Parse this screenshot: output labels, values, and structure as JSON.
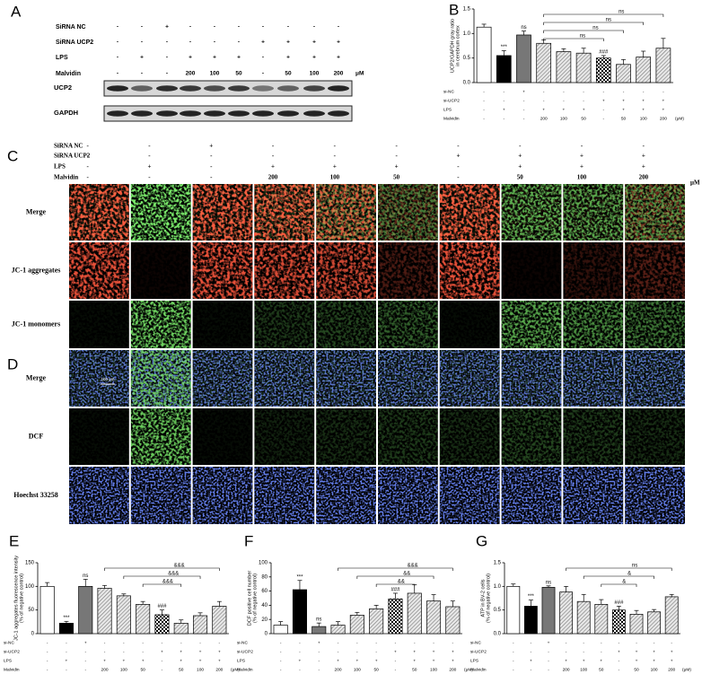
{
  "panels": {
    "A": {
      "letter": "A",
      "conditions": {
        "rows": [
          {
            "label": "SiRNA NC",
            "cells": [
              "-",
              "-",
              "+",
              "-",
              "-",
              "-",
              "-",
              "-",
              "-",
              "-"
            ]
          },
          {
            "label": "SiRNA UCP2",
            "cells": [
              "-",
              "-",
              "-",
              "-",
              "-",
              "-",
              "+",
              "+",
              "+",
              "+"
            ]
          },
          {
            "label": "LPS",
            "cells": [
              "-",
              "+",
              "-",
              "+",
              "+",
              "+",
              "-",
              "+",
              "+",
              "+"
            ]
          },
          {
            "label": "Malvidin",
            "cells": [
              "-",
              "-",
              "-",
              "200",
              "100",
              "50",
              "-",
              "50",
              "100",
              "200"
            ]
          }
        ],
        "unit": "μM"
      },
      "blots": [
        "UCP2",
        "GAPDH"
      ]
    },
    "C": {
      "letter": "C",
      "conditions": {
        "rows": [
          {
            "label": "SiRNA NC",
            "cells": [
              "-",
              "-",
              "+",
              "-",
              "-",
              "-",
              "-",
              "-",
              "-",
              "-"
            ]
          },
          {
            "label": "SiRNA UCP2",
            "cells": [
              "-",
              "-",
              "-",
              "-",
              "-",
              "-",
              "+",
              "+",
              "+",
              "+"
            ]
          },
          {
            "label": "LPS",
            "cells": [
              "-",
              "+",
              "-",
              "+",
              "+",
              "+",
              "-",
              "+",
              "+",
              "+"
            ]
          },
          {
            "label": "Malvidin",
            "cells": [
              "-",
              "-",
              "-",
              "200",
              "100",
              "50",
              "-",
              "50",
              "100",
              "200"
            ]
          }
        ],
        "unit": "μM"
      },
      "rows": [
        "Merge",
        "JC-1 aggregates",
        "JC-1 monomers"
      ]
    },
    "D": {
      "letter": "D",
      "rows": [
        "Merge",
        "DCF",
        "Hoechst 33258"
      ],
      "scale_bar": "100 μm"
    }
  },
  "treatments": {
    "rows": [
      {
        "label": "si-NC",
        "cells": [
          "-",
          "-",
          "+",
          "-",
          "-",
          "-",
          "-",
          "-",
          "-",
          "-"
        ]
      },
      {
        "label": "si-UCP2",
        "cells": [
          "-",
          "-",
          "-",
          "-",
          "-",
          "-",
          "+",
          "+",
          "+",
          "+"
        ]
      },
      {
        "label": "LPS",
        "cells": [
          "-",
          "+",
          "-",
          "+",
          "+",
          "+",
          "-",
          "+",
          "+",
          "+"
        ]
      },
      {
        "label": "Malvidin",
        "cells": [
          "-",
          "-",
          "-",
          "200",
          "100",
          "50",
          "-",
          "50",
          "100",
          "200"
        ]
      }
    ],
    "unit": "(μM)"
  },
  "chart_data": [
    {
      "letter": "B",
      "type": "bar",
      "ylabel": [
        "UCP2/GAPDH gray ratio",
        "in cerebrum cortex"
      ],
      "values": [
        1.13,
        0.55,
        0.97,
        0.8,
        0.63,
        0.6,
        0.5,
        0.37,
        0.52,
        0.7
      ],
      "errors": [
        0.06,
        0.1,
        0.08,
        0.07,
        0.06,
        0.1,
        0.05,
        0.1,
        0.12,
        0.2
      ],
      "bar_fills": [
        "open",
        "solid",
        "dark",
        "hatch",
        "hatch",
        "hatch",
        "check",
        "hatch",
        "hatch",
        "hatch"
      ],
      "bar_labels": [
        null,
        "***",
        "ns",
        null,
        null,
        null,
        "###",
        null,
        null,
        null
      ],
      "brackets": [
        {
          "label": "ns",
          "from": 3,
          "to": 9
        },
        {
          "label": "ns",
          "from": 3,
          "to": 8
        },
        {
          "label": "ns",
          "from": 3,
          "to": 7
        },
        {
          "label": "ns",
          "from": 3,
          "to": 6
        }
      ],
      "ylim": [
        0,
        1.5
      ],
      "yticks": [
        {
          "value": 0,
          "label": "0.0"
        },
        0.5,
        {
          "value": 1,
          "label": "1.0"
        },
        1.5
      ]
    },
    {
      "letter": "E",
      "type": "bar",
      "ylabel": [
        "JC-1 aggregates fluorescence intensity",
        "(% of negative control)"
      ],
      "values": [
        100,
        22,
        100,
        96,
        80,
        62,
        40,
        22,
        38,
        58
      ],
      "errors": [
        8,
        4,
        15,
        6,
        4,
        6,
        10,
        7,
        6,
        10
      ],
      "bar_fills": [
        "open",
        "solid",
        "dark",
        "hatch",
        "hatch",
        "hatch",
        "check",
        "hatch",
        "hatch",
        "hatch"
      ],
      "bar_labels": [
        null,
        "***",
        "ns",
        null,
        null,
        null,
        "###",
        null,
        null,
        null
      ],
      "brackets": [
        {
          "label": "&&&",
          "from": 3,
          "to": 9
        },
        {
          "label": "&&&",
          "from": 4,
          "to": 8
        },
        {
          "label": "&&&",
          "from": 5,
          "to": 7
        }
      ],
      "ylim": [
        0,
        150
      ],
      "yticks": [
        0,
        50,
        100,
        150
      ]
    },
    {
      "letter": "F",
      "type": "bar",
      "ylabel": [
        "DCF positive cell number",
        "(% of negative control)"
      ],
      "values": [
        12,
        62,
        10,
        12,
        26,
        35,
        49,
        57,
        46,
        38
      ],
      "errors": [
        5,
        13,
        5,
        5,
        4,
        5,
        8,
        12,
        9,
        8
      ],
      "bar_fills": [
        "open",
        "solid",
        "dark",
        "hatch",
        "hatch",
        "hatch",
        "check",
        "hatch",
        "hatch",
        "hatch"
      ],
      "bar_labels": [
        null,
        "***",
        "ns",
        null,
        null,
        null,
        "###",
        null,
        null,
        null
      ],
      "brackets": [
        {
          "label": "&&&",
          "from": 3,
          "to": 9
        },
        {
          "label": "&&",
          "from": 4,
          "to": 8
        },
        {
          "label": "&&",
          "from": 5,
          "to": 7
        }
      ],
      "ylim": [
        0,
        100
      ],
      "yticks": [
        0,
        20,
        40,
        60,
        80,
        100
      ]
    },
    {
      "letter": "G",
      "type": "bar",
      "ylabel": [
        "ATP in BV-2 cells",
        "(% of negative control)"
      ],
      "values": [
        1.0,
        0.58,
        0.98,
        0.88,
        0.68,
        0.62,
        0.5,
        0.41,
        0.46,
        0.78
      ],
      "errors": [
        0.05,
        0.13,
        0.03,
        0.12,
        0.15,
        0.1,
        0.08,
        0.08,
        0.05,
        0.05
      ],
      "bar_fills": [
        "open",
        "solid",
        "dark",
        "hatch",
        "hatch",
        "hatch",
        "check",
        "hatch",
        "hatch",
        "hatch"
      ],
      "bar_labels": [
        null,
        "***",
        "ns",
        null,
        null,
        null,
        "###",
        null,
        null,
        null
      ],
      "brackets": [
        {
          "label": "ns",
          "from": 3,
          "to": 9
        },
        {
          "label": "&",
          "from": 4,
          "to": 8
        },
        {
          "label": "&",
          "from": 5,
          "to": 7
        }
      ],
      "ylim": [
        0,
        1.5
      ],
      "yticks": [
        {
          "value": 0,
          "label": "0.0"
        },
        0.5,
        {
          "value": 1,
          "label": "1.0"
        },
        1.5
      ]
    }
  ]
}
